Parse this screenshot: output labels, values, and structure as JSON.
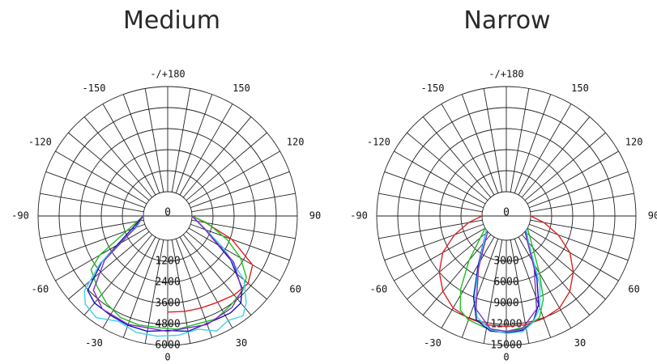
{
  "chart_data": [
    {
      "type": "polar",
      "title": "Medium",
      "angle_labels": [
        {
          "deg": 180,
          "text": "-/+180"
        },
        {
          "deg": -150,
          "text": "-150"
        },
        {
          "deg": 150,
          "text": "150"
        },
        {
          "deg": -120,
          "text": "-120"
        },
        {
          "deg": 120,
          "text": "120"
        },
        {
          "deg": -90,
          "text": "-90"
        },
        {
          "deg": 90,
          "text": "90"
        },
        {
          "deg": -60,
          "text": "-60"
        },
        {
          "deg": 60,
          "text": "60"
        },
        {
          "deg": -30,
          "text": "-30"
        },
        {
          "deg": 30,
          "text": "30"
        },
        {
          "deg": 0,
          "text": "0"
        }
      ],
      "radial_ticks": [
        0,
        1200,
        2400,
        3600,
        4800,
        6000
      ],
      "rmax": 6000,
      "series": [
        {
          "color": "#e02020",
          "points": [
            [
              0,
              4100
            ],
            [
              10,
              4150
            ],
            [
              20,
              4200
            ],
            [
              30,
              4300
            ],
            [
              40,
              4500
            ],
            [
              50,
              4600
            ],
            [
              60,
              4200
            ],
            [
              70,
              2500
            ],
            [
              80,
              800
            ],
            [
              90,
              0
            ]
          ]
        },
        {
          "color": "#20c020",
          "points": [
            [
              -90,
              0
            ],
            [
              -70,
              1100
            ],
            [
              -60,
              3100
            ],
            [
              -55,
              3950
            ],
            [
              -45,
              4300
            ],
            [
              -35,
              4700
            ],
            [
              -25,
              5000
            ],
            [
              -15,
              5050
            ],
            [
              -5,
              5000
            ],
            [
              0,
              5050
            ],
            [
              5,
              5100
            ],
            [
              15,
              5000
            ],
            [
              25,
              5100
            ],
            [
              35,
              4850
            ],
            [
              45,
              4650
            ],
            [
              52,
              4300
            ],
            [
              60,
              3400
            ],
            [
              68,
              2300
            ],
            [
              80,
              900
            ],
            [
              90,
              0
            ]
          ]
        },
        {
          "color": "#1010b0",
          "points": [
            [
              -90,
              0
            ],
            [
              -70,
              800
            ],
            [
              -55,
              3200
            ],
            [
              -47,
              4850
            ],
            [
              -40,
              5100
            ],
            [
              -30,
              5150
            ],
            [
              -20,
              5250
            ],
            [
              -10,
              5300
            ],
            [
              0,
              5150
            ],
            [
              10,
              5300
            ],
            [
              20,
              5150
            ],
            [
              28,
              5150
            ],
            [
              33,
              5200
            ],
            [
              40,
              5100
            ],
            [
              46,
              4500
            ],
            [
              55,
              3000
            ],
            [
              70,
              900
            ],
            [
              90,
              0
            ]
          ]
        },
        {
          "color": "#40d0f0",
          "points": [
            [
              -90,
              0
            ],
            [
              -70,
              500
            ],
            [
              -55,
              3300
            ],
            [
              -48,
              5000
            ],
            [
              -43,
              5500
            ],
            [
              -35,
              5700
            ],
            [
              -25,
              5250
            ],
            [
              -15,
              5500
            ],
            [
              -5,
              5500
            ],
            [
              5,
              5450
            ],
            [
              15,
              5300
            ],
            [
              23,
              5750
            ],
            [
              30,
              5500
            ],
            [
              37,
              5750
            ],
            [
              42,
              5300
            ],
            [
              50,
              4300
            ],
            [
              60,
              2300
            ],
            [
              75,
              600
            ],
            [
              90,
              0
            ]
          ]
        },
        {
          "color": "#8030c0",
          "points": [
            [
              -90,
              0
            ],
            [
              -70,
              600
            ],
            [
              -55,
              3000
            ],
            [
              -45,
              4600
            ],
            [
              -35,
              5100
            ],
            [
              -20,
              5200
            ],
            [
              0,
              5200
            ],
            [
              20,
              5200
            ],
            [
              35,
              5000
            ],
            [
              45,
              4600
            ],
            [
              55,
              3200
            ],
            [
              70,
              900
            ],
            [
              90,
              0
            ]
          ]
        }
      ]
    },
    {
      "type": "polar",
      "title": "Narrow",
      "angle_labels": [
        {
          "deg": 180,
          "text": "-/+180"
        },
        {
          "deg": -150,
          "text": "-150"
        },
        {
          "deg": 150,
          "text": "150"
        },
        {
          "deg": -120,
          "text": "-120"
        },
        {
          "deg": 120,
          "text": "120"
        },
        {
          "deg": -90,
          "text": "-90"
        },
        {
          "deg": 90,
          "text": "90"
        },
        {
          "deg": -60,
          "text": "-60"
        },
        {
          "deg": 60,
          "text": "60"
        },
        {
          "deg": -30,
          "text": "-30"
        },
        {
          "deg": 30,
          "text": "30"
        },
        {
          "deg": 0,
          "text": "0"
        }
      ],
      "radial_ticks": [
        0,
        3000,
        6000,
        9000,
        12000,
        15000
      ],
      "rmax": 15000,
      "series": [
        {
          "color": "#e02020",
          "points": [
            [
              -90,
              0
            ],
            [
              -80,
              2000
            ],
            [
              -70,
              4400
            ],
            [
              -60,
              7000
            ],
            [
              -50,
              9000
            ],
            [
              -40,
              10600
            ],
            [
              -30,
              11700
            ],
            [
              -20,
              12100
            ],
            [
              -10,
              12300
            ],
            [
              0,
              12300
            ],
            [
              10,
              12300
            ],
            [
              20,
              12100
            ],
            [
              30,
              11700
            ],
            [
              40,
              10600
            ],
            [
              50,
              9000
            ],
            [
              60,
              7000
            ],
            [
              70,
              4400
            ],
            [
              80,
              2000
            ],
            [
              90,
              0
            ]
          ]
        },
        {
          "color": "#20c020",
          "points": [
            [
              -60,
              0
            ],
            [
              -40,
              4800
            ],
            [
              -32,
              8800
            ],
            [
              -26,
              11500
            ],
            [
              -20,
              12300
            ],
            [
              -10,
              12800
            ],
            [
              0,
              13000
            ],
            [
              10,
              12600
            ],
            [
              18,
              11800
            ],
            [
              24,
              9500
            ],
            [
              30,
              6000
            ],
            [
              45,
              1500
            ],
            [
              60,
              0
            ]
          ]
        },
        {
          "color": "#1010b0",
          "points": [
            [
              -55,
              0
            ],
            [
              -30,
              4500
            ],
            [
              -22,
              9000
            ],
            [
              -16,
              12000
            ],
            [
              -8,
              13100
            ],
            [
              0,
              13200
            ],
            [
              8,
              13000
            ],
            [
              14,
              12200
            ],
            [
              20,
              10000
            ],
            [
              26,
              6500
            ],
            [
              40,
              1200
            ],
            [
              55,
              0
            ]
          ]
        },
        {
          "color": "#40d0f0",
          "points": [
            [
              -55,
              0
            ],
            [
              -30,
              4200
            ],
            [
              -22,
              8500
            ],
            [
              -16,
              11600
            ],
            [
              -8,
              12900
            ],
            [
              0,
              13300
            ],
            [
              8,
              13200
            ],
            [
              14,
              12200
            ],
            [
              20,
              10500
            ],
            [
              26,
              7500
            ],
            [
              40,
              1500
            ],
            [
              55,
              0
            ]
          ]
        },
        {
          "color": "#8030c0",
          "points": [
            [
              -50,
              0
            ],
            [
              -28,
              5000
            ],
            [
              -18,
              10500
            ],
            [
              -8,
              12800
            ],
            [
              0,
              13000
            ],
            [
              8,
              12800
            ],
            [
              18,
              10500
            ],
            [
              28,
              5000
            ],
            [
              50,
              0
            ]
          ]
        }
      ]
    }
  ]
}
